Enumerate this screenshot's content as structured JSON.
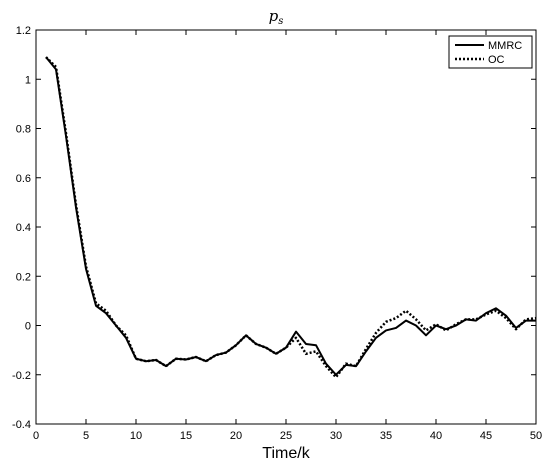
{
  "chart_data": {
    "type": "line",
    "title": "p",
    "title_subscript": "s",
    "xlabel": "Time/k",
    "ylabel": "",
    "xlim": [
      0,
      50
    ],
    "ylim": [
      -0.4,
      1.2
    ],
    "xticks": [
      0,
      5,
      10,
      15,
      20,
      25,
      30,
      35,
      40,
      45,
      50
    ],
    "yticks": [
      -0.4,
      -0.2,
      0,
      0.2,
      0.4,
      0.6,
      0.8,
      1,
      1.2
    ],
    "ytick_labels": [
      "-0.4",
      "-0.2",
      "0",
      "0.2",
      "0.4",
      "0.6",
      "0.8",
      "1",
      "1.2"
    ],
    "grid": false,
    "legend_position": "top-right",
    "x": [
      1,
      2,
      3,
      4,
      5,
      6,
      7,
      8,
      9,
      10,
      11,
      12,
      13,
      14,
      15,
      16,
      17,
      18,
      19,
      20,
      21,
      22,
      23,
      24,
      25,
      26,
      27,
      28,
      29,
      30,
      31,
      32,
      33,
      34,
      35,
      36,
      37,
      38,
      39,
      40,
      41,
      42,
      43,
      44,
      45,
      46,
      47,
      48,
      49,
      50
    ],
    "series": [
      {
        "name": "MMRC",
        "style": "solid",
        "color": "#000000",
        "values": [
          1.09,
          1.04,
          0.77,
          0.48,
          0.23,
          0.08,
          0.05,
          0.0,
          -0.05,
          -0.135,
          -0.145,
          -0.14,
          -0.165,
          -0.135,
          -0.138,
          -0.128,
          -0.145,
          -0.12,
          -0.11,
          -0.08,
          -0.04,
          -0.075,
          -0.09,
          -0.115,
          -0.09,
          -0.025,
          -0.075,
          -0.08,
          -0.155,
          -0.2,
          -0.16,
          -0.165,
          -0.105,
          -0.05,
          -0.02,
          -0.01,
          0.02,
          0.0,
          -0.04,
          0.0,
          -0.015,
          0.0,
          0.025,
          0.02,
          0.05,
          0.07,
          0.04,
          -0.01,
          0.02,
          0.02
        ]
      },
      {
        "name": "OC",
        "style": "dotted",
        "color": "#000000",
        "values": [
          1.09,
          1.05,
          0.78,
          0.49,
          0.24,
          0.09,
          0.06,
          0.0,
          -0.04,
          -0.135,
          -0.145,
          -0.14,
          -0.165,
          -0.135,
          -0.138,
          -0.128,
          -0.145,
          -0.12,
          -0.11,
          -0.08,
          -0.04,
          -0.075,
          -0.09,
          -0.115,
          -0.09,
          -0.05,
          -0.115,
          -0.105,
          -0.165,
          -0.21,
          -0.155,
          -0.165,
          -0.095,
          -0.03,
          0.015,
          0.03,
          0.06,
          0.025,
          -0.02,
          0.005,
          -0.02,
          0.005,
          0.025,
          0.025,
          0.045,
          0.06,
          0.03,
          -0.015,
          0.025,
          0.03
        ]
      }
    ]
  }
}
